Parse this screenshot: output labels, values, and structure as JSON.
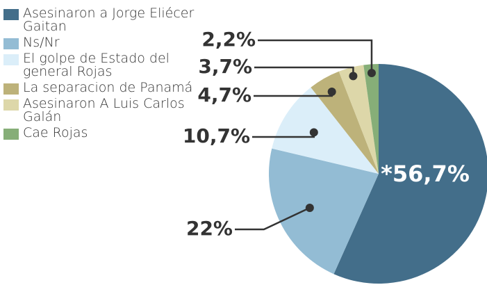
{
  "chart_data": {
    "type": "pie",
    "categories": [
      "Asesinaron a Jorge Eliécer Gaitan",
      "Ns/Nr",
      "El golpe de Estado del general Rojas",
      "La separacion de Panamá",
      "Asesinaron A Luis Carlos Galán",
      "Cae Rojas"
    ],
    "values": [
      56.7,
      22,
      10.7,
      4.7,
      3.7,
      2.2
    ],
    "value_labels": [
      "*56,7%",
      "22%",
      "10,7%",
      "4,7%",
      "3,7%",
      "2,2%"
    ],
    "colors": [
      "#436e8a",
      "#93bcd4",
      "#dbeef9",
      "#bdb27a",
      "#ddd7a9",
      "#86ae78"
    ],
    "legend": "top-left"
  }
}
